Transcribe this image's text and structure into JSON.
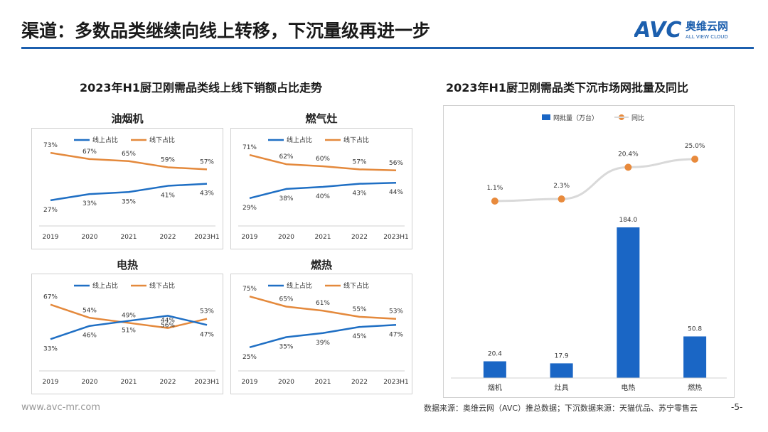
{
  "header": {
    "title": "渠道：多数品类继续向线上转移，下沉量级再进一步",
    "logo_text": "AVC",
    "logo_cn": "奥维云网",
    "logo_sub": "ALL VIEW CLOUD"
  },
  "left": {
    "title": "2023年H1厨卫刚需品类线上线下销额占比走势"
  },
  "right": {
    "title": "2023年H1厨卫刚需品类下沉市场网批量及同比"
  },
  "footer": {
    "site": "www.avc-mr.com",
    "source": "数据来源：奥维云网（AVC）推总数据；下沉数据来源：天猫优品、苏宁零售云",
    "page": "-5-"
  },
  "colors": {
    "online": "#1f6fc4",
    "offline": "#e4893c",
    "bar": "#1a66c5",
    "yoy_line": "#d9d9d9",
    "yoy_dot": "#e88a3c"
  },
  "chart_data": [
    {
      "type": "line",
      "title": "油烟机",
      "categories": [
        "2019",
        "2020",
        "2021",
        "2022",
        "2023H1"
      ],
      "series": [
        {
          "name": "线上占比",
          "values": [
            27,
            33,
            35,
            41,
            43
          ],
          "labels": [
            "27%",
            "33%",
            "35%",
            "41%",
            "43%"
          ]
        },
        {
          "name": "线下占比",
          "values": [
            73,
            67,
            65,
            59,
            57
          ],
          "labels": [
            "73%",
            "67%",
            "65%",
            "59%",
            "57%"
          ]
        }
      ],
      "ylim": [
        0,
        100
      ],
      "legend": "top"
    },
    {
      "type": "line",
      "title": "燃气灶",
      "categories": [
        "2019",
        "2020",
        "2021",
        "2022",
        "2023H1"
      ],
      "series": [
        {
          "name": "线上占比",
          "values": [
            29,
            38,
            40,
            43,
            44
          ],
          "labels": [
            "29%",
            "38%",
            "40%",
            "43%",
            "44%"
          ]
        },
        {
          "name": "线下占比",
          "values": [
            71,
            62,
            60,
            57,
            56
          ],
          "labels": [
            "71%",
            "62%",
            "60%",
            "57%",
            "56%"
          ]
        }
      ],
      "ylim": [
        0,
        100
      ],
      "legend": "top"
    },
    {
      "type": "line",
      "title": "电热",
      "categories": [
        "2019",
        "2020",
        "2021",
        "2022",
        "2023H1"
      ],
      "series": [
        {
          "name": "线上占比",
          "values": [
            33,
            46,
            51,
            56,
            47
          ],
          "labels": [
            "33%",
            "46%",
            "51%",
            "56%",
            "47%"
          ]
        },
        {
          "name": "线下占比",
          "values": [
            67,
            54,
            49,
            44,
            53
          ],
          "labels": [
            "67%",
            "54%",
            "49%",
            "44%",
            "53%"
          ]
        }
      ],
      "ylim": [
        0,
        100
      ],
      "legend": "top"
    },
    {
      "type": "line",
      "title": "燃热",
      "categories": [
        "2019",
        "2020",
        "2021",
        "2022",
        "2023H1"
      ],
      "series": [
        {
          "name": "线上占比",
          "values": [
            25,
            35,
            39,
            45,
            47
          ],
          "labels": [
            "25%",
            "35%",
            "39%",
            "45%",
            "47%"
          ]
        },
        {
          "name": "线下占比",
          "values": [
            75,
            65,
            61,
            55,
            53
          ],
          "labels": [
            "75%",
            "65%",
            "61%",
            "55%",
            "53%"
          ]
        }
      ],
      "ylim": [
        0,
        100
      ],
      "legend": "top"
    },
    {
      "type": "bar",
      "title": "2023年H1厨卫刚需品类下沉市场网批量及同比",
      "categories": [
        "烟机",
        "灶具",
        "电热",
        "燃热"
      ],
      "series": [
        {
          "name": "网批量（万台）",
          "values": [
            20.4,
            17.9,
            184.0,
            50.8
          ],
          "labels": [
            "20.4",
            "17.9",
            "184.0",
            "50.8"
          ]
        },
        {
          "name": "同比",
          "values": [
            1.1,
            2.3,
            20.4,
            25.0
          ],
          "labels": [
            "1.1%",
            "2.3%",
            "20.4%",
            "25.0%"
          ]
        }
      ],
      "legend": "top"
    }
  ]
}
